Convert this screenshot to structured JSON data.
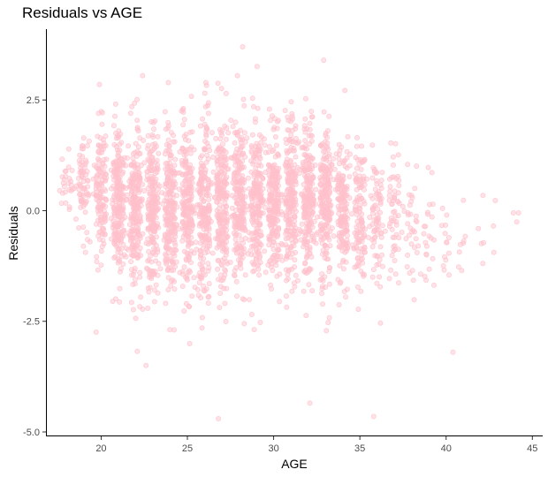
{
  "chart_data": {
    "type": "scatter",
    "title": "Residuals vs AGE",
    "xlabel": "AGE",
    "ylabel": "Residuals",
    "xlim": [
      16.8,
      45.6
    ],
    "ylim": [
      -5.1,
      4.1
    ],
    "x_ticks": [
      "20",
      "25",
      "30",
      "35",
      "40",
      "45"
    ],
    "y_ticks": [
      "2.5",
      "0.0",
      "-2.5",
      "-5.0"
    ],
    "grid": false,
    "point_color": "#ffc0cb",
    "point_opacity": 0.45,
    "age_range": [
      17.6,
      44.2
    ],
    "point_count_shown": "dense cloud (several thousand points)",
    "band_residual_spread": [
      {
        "age": 18,
        "mean": 0.8,
        "sd": 0.45
      },
      {
        "age": 19,
        "mean": 0.6,
        "sd": 0.6
      },
      {
        "age": 20,
        "mean": 0.4,
        "sd": 0.75
      },
      {
        "age": 21,
        "mean": 0.25,
        "sd": 0.8
      },
      {
        "age": 22,
        "mean": 0.1,
        "sd": 0.85
      },
      {
        "age": 23,
        "mean": 0.0,
        "sd": 0.9
      },
      {
        "age": 24,
        "mean": -0.05,
        "sd": 0.95
      },
      {
        "age": 25,
        "mean": 0.05,
        "sd": 0.95
      },
      {
        "age": 26,
        "mean": 0.1,
        "sd": 0.95
      },
      {
        "age": 27,
        "mean": 0.15,
        "sd": 0.95
      },
      {
        "age": 28,
        "mean": 0.2,
        "sd": 0.95
      },
      {
        "age": 29,
        "mean": 0.2,
        "sd": 0.9
      },
      {
        "age": 30,
        "mean": 0.2,
        "sd": 0.9
      },
      {
        "age": 31,
        "mean": 0.2,
        "sd": 0.85
      },
      {
        "age": 32,
        "mean": 0.15,
        "sd": 0.85
      },
      {
        "age": 33,
        "mean": 0.1,
        "sd": 0.8
      },
      {
        "age": 34,
        "mean": 0.0,
        "sd": 0.8
      },
      {
        "age": 35,
        "mean": -0.1,
        "sd": 0.8
      },
      {
        "age": 36,
        "mean": -0.2,
        "sd": 0.75
      },
      {
        "age": 37,
        "mean": -0.3,
        "sd": 0.75
      },
      {
        "age": 38,
        "mean": -0.4,
        "sd": 0.7
      },
      {
        "age": 39,
        "mean": -0.5,
        "sd": 0.7
      },
      {
        "age": 40,
        "mean": -0.6,
        "sd": 0.65
      },
      {
        "age": 41,
        "mean": -0.7,
        "sd": 0.6
      },
      {
        "age": 42,
        "mean": -0.8,
        "sd": 0.55
      },
      {
        "age": 43,
        "mean": -0.6,
        "sd": 0.5
      },
      {
        "age": 44,
        "mean": -0.1,
        "sd": 0.1
      }
    ],
    "outliers": [
      {
        "x": 28.2,
        "y": 3.7
      },
      {
        "x": 32.9,
        "y": 3.4
      },
      {
        "x": 22.4,
        "y": 3.05
      },
      {
        "x": 27.9,
        "y": 3.05
      },
      {
        "x": 19.9,
        "y": 2.85
      },
      {
        "x": 26.8,
        "y": -4.7
      },
      {
        "x": 35.8,
        "y": -4.65
      },
      {
        "x": 32.1,
        "y": -4.35
      },
      {
        "x": 22.6,
        "y": -3.5
      },
      {
        "x": 44.2,
        "y": -0.05
      },
      {
        "x": 43.9,
        "y": -0.05
      },
      {
        "x": 17.6,
        "y": 0.45
      },
      {
        "x": 40.4,
        "y": -3.2
      }
    ]
  }
}
